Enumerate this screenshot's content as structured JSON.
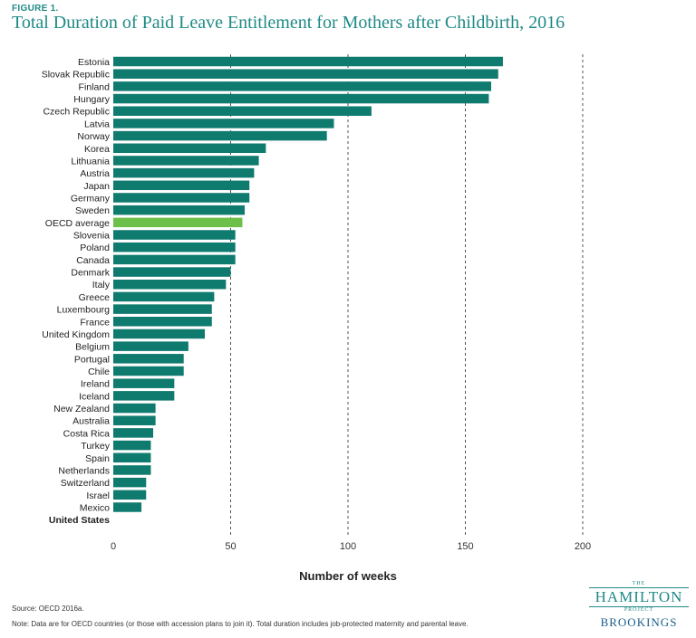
{
  "figure_label": "FIGURE 1.",
  "source": "Source: OECD 2016a.",
  "note": "Note: Data are for OECD countries (or those with accession plans to join it). Total duration includes job-protected maternity and parental leave.",
  "logo": {
    "the": "THE",
    "hamilton": "HAMILTON",
    "project": "PROJECT",
    "brookings": "BROOKINGS"
  },
  "colors": {
    "bar": "#0f7a6e",
    "highlight": "#6cc04a",
    "title": "#1f8a86",
    "gridline": "#555555"
  },
  "chart_data": {
    "type": "bar",
    "orientation": "horizontal",
    "title": "Total Duration of Paid Leave Entitlement for Mothers after Childbirth, 2016",
    "xlabel": "Number of weeks",
    "ylabel": "",
    "xlim": [
      0,
      200
    ],
    "xticks": [
      0,
      50,
      100,
      150,
      200
    ],
    "grid": "vertical dashed",
    "highlight_category": "OECD average",
    "bold_category": "United States",
    "categories": [
      "Estonia",
      "Slovak Republic",
      "Finland",
      "Hungary",
      "Czech Republic",
      "Latvia",
      "Norway",
      "Korea",
      "Lithuania",
      "Austria",
      "Japan",
      "Germany",
      "Sweden",
      "OECD average",
      "Slovenia",
      "Poland",
      "Canada",
      "Denmark",
      "Italy",
      "Greece",
      "Luxembourg",
      "France",
      "United Kingdom",
      "Belgium",
      "Portugal",
      "Chile",
      "Ireland",
      "Iceland",
      "New Zealand",
      "Australia",
      "Costa Rica",
      "Turkey",
      "Spain",
      "Netherlands",
      "Switzerland",
      "Israel",
      "Mexico",
      "United States"
    ],
    "values": [
      166,
      164,
      161,
      160,
      110,
      94,
      91,
      65,
      62,
      60,
      58,
      58,
      56,
      55,
      52,
      52,
      52,
      50,
      48,
      43,
      42,
      42,
      39,
      32,
      30,
      30,
      26,
      26,
      18,
      18,
      17,
      16,
      16,
      16,
      14,
      14,
      12,
      0
    ]
  }
}
